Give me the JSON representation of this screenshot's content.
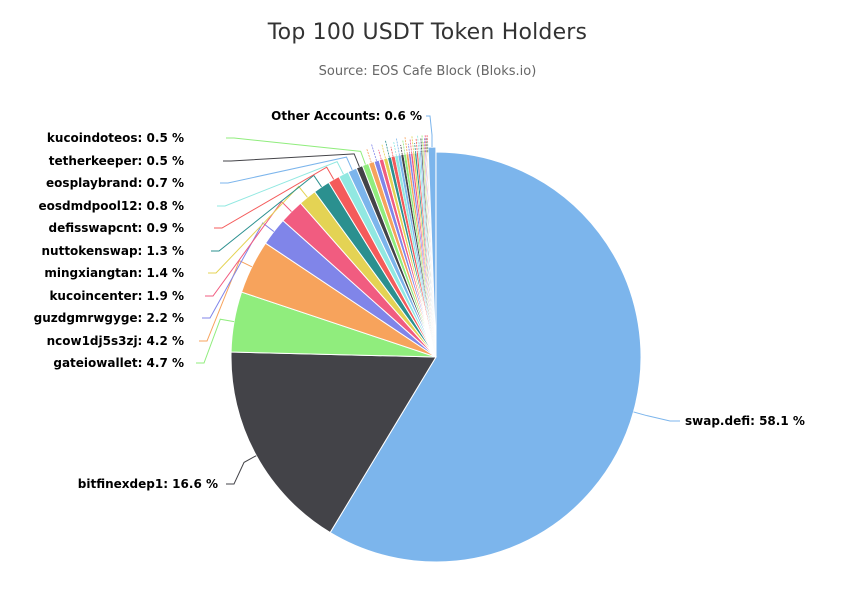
{
  "chart_data": {
    "type": "pie",
    "title": "Top 100 USDT Token Holders",
    "subtitle": "Source: EOS Cafe Block (Bloks.io)",
    "unit": "%",
    "slices": [
      {
        "name": "swap.defi",
        "value": 58.1,
        "color": "#7cb5ec"
      },
      {
        "name": "bitfinexdep1",
        "value": 16.6,
        "color": "#434348"
      },
      {
        "name": "gateiowallet",
        "value": 4.7,
        "color": "#90ed7d"
      },
      {
        "name": "ncow1dj5s3zj",
        "value": 4.2,
        "color": "#f7a35c"
      },
      {
        "name": "guzdgmrwgyge",
        "value": 2.2,
        "color": "#8085e9"
      },
      {
        "name": "kucoincenter",
        "value": 1.9,
        "color": "#f15c80"
      },
      {
        "name": "mingxiangtan",
        "value": 1.4,
        "color": "#e4d354"
      },
      {
        "name": "nuttokenswap",
        "value": 1.3,
        "color": "#2b908f"
      },
      {
        "name": "defisswapcnt",
        "value": 0.9,
        "color": "#f45b5b"
      },
      {
        "name": "eosdmdpool12",
        "value": 0.8,
        "color": "#91e8e1"
      },
      {
        "name": "eosplaybrand",
        "value": 0.7,
        "color": "#7cb5ec"
      },
      {
        "name": "tetherkeeper",
        "value": 0.5,
        "color": "#434348"
      },
      {
        "name": "kucoindoteos",
        "value": 0.5,
        "color": "#90ed7d"
      },
      {
        "name": "",
        "value": 0.45,
        "color": "#f7a35c"
      },
      {
        "name": "",
        "value": 0.4,
        "color": "#8085e9"
      },
      {
        "name": "",
        "value": 0.35,
        "color": "#f15c80"
      },
      {
        "name": "",
        "value": 0.32,
        "color": "#e4d354"
      },
      {
        "name": "",
        "value": 0.3,
        "color": "#2b908f"
      },
      {
        "name": "",
        "value": 0.28,
        "color": "#f45b5b"
      },
      {
        "name": "",
        "value": 0.25,
        "color": "#91e8e1"
      },
      {
        "name": "",
        "value": 0.23,
        "color": "#7cb5ec"
      },
      {
        "name": "",
        "value": 0.21,
        "color": "#434348"
      },
      {
        "name": "",
        "value": 0.2,
        "color": "#90ed7d"
      },
      {
        "name": "",
        "value": 0.18,
        "color": "#f7a35c"
      },
      {
        "name": "",
        "value": 0.17,
        "color": "#8085e9"
      },
      {
        "name": "",
        "value": 0.16,
        "color": "#f15c80"
      },
      {
        "name": "",
        "value": 0.15,
        "color": "#e4d354"
      },
      {
        "name": "",
        "value": 0.14,
        "color": "#2b908f"
      },
      {
        "name": "",
        "value": 0.13,
        "color": "#f45b5b"
      },
      {
        "name": "",
        "value": 0.12,
        "color": "#91e8e1"
      },
      {
        "name": "",
        "value": 0.11,
        "color": "#7cb5ec"
      },
      {
        "name": "",
        "value": 0.1,
        "color": "#434348"
      },
      {
        "name": "",
        "value": 0.09,
        "color": "#90ed7d"
      },
      {
        "name": "",
        "value": 0.08,
        "color": "#f7a35c"
      },
      {
        "name": "",
        "value": 0.07,
        "color": "#8085e9"
      },
      {
        "name": "",
        "value": 0.06,
        "color": "#f15c80"
      },
      {
        "name": "",
        "value": 0.05,
        "color": "#e4d354"
      },
      {
        "name": "",
        "value": 0.04,
        "color": "#2b908f"
      },
      {
        "name": "",
        "value": 0.03,
        "color": "#f45b5b"
      },
      {
        "name": "",
        "value": 0.02,
        "color": "#91e8e1"
      },
      {
        "name": "Other Accounts",
        "value": 0.6,
        "color": "#7cb5ec"
      }
    ]
  }
}
